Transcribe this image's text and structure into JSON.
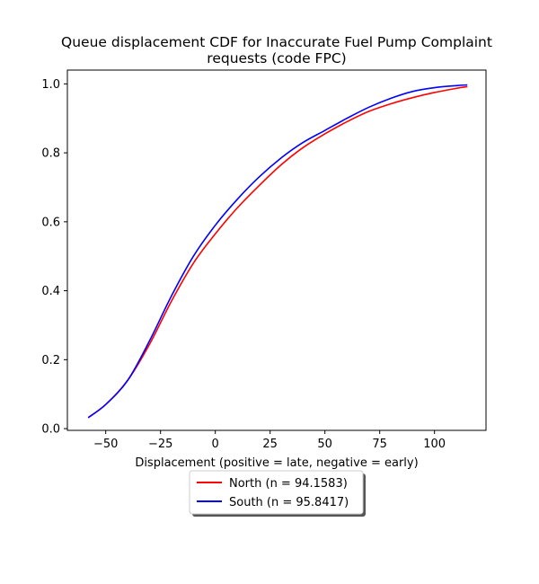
{
  "chart_data": {
    "type": "line",
    "title_line1": "Queue displacement CDF for Inaccurate Fuel Pump Complaint",
    "title_line2": "requests (code FPC)",
    "xlabel": "Displacement (positive = late, negative = early)",
    "ylabel": "",
    "xlim": [
      -67.5,
      123.5
    ],
    "ylim": [
      -0.005,
      1.04
    ],
    "xticks": [
      -50,
      -25,
      0,
      25,
      50,
      75,
      100
    ],
    "xtick_labels": [
      "−50",
      "−25",
      "0",
      "25",
      "50",
      "75",
      "100"
    ],
    "yticks": [
      0.0,
      0.2,
      0.4,
      0.6,
      0.8,
      1.0
    ],
    "ytick_labels": [
      "0.0",
      "0.2",
      "0.4",
      "0.6",
      "0.8",
      "1.0"
    ],
    "grid": false,
    "legend_position": "below",
    "series": [
      {
        "name": "North (n = 94.1583)",
        "color": "#ff0000",
        "x": [
          -58,
          -50,
          -40,
          -30,
          -20,
          -10,
          0,
          10,
          20,
          30,
          40,
          50,
          60,
          70,
          80,
          90,
          100,
          110,
          115
        ],
        "y": [
          0.032,
          0.07,
          0.14,
          0.245,
          0.37,
          0.48,
          0.565,
          0.64,
          0.705,
          0.765,
          0.815,
          0.855,
          0.89,
          0.92,
          0.942,
          0.96,
          0.975,
          0.987,
          0.992
        ]
      },
      {
        "name": "South (n = 95.8417)",
        "color": "#0000ff",
        "x": [
          -58,
          -50,
          -40,
          -30,
          -20,
          -10,
          0,
          10,
          20,
          30,
          40,
          50,
          60,
          70,
          80,
          90,
          100,
          110,
          115
        ],
        "y": [
          0.032,
          0.07,
          0.14,
          0.255,
          0.385,
          0.5,
          0.59,
          0.665,
          0.73,
          0.785,
          0.83,
          0.865,
          0.9,
          0.932,
          0.958,
          0.978,
          0.989,
          0.995,
          0.997
        ]
      }
    ]
  }
}
